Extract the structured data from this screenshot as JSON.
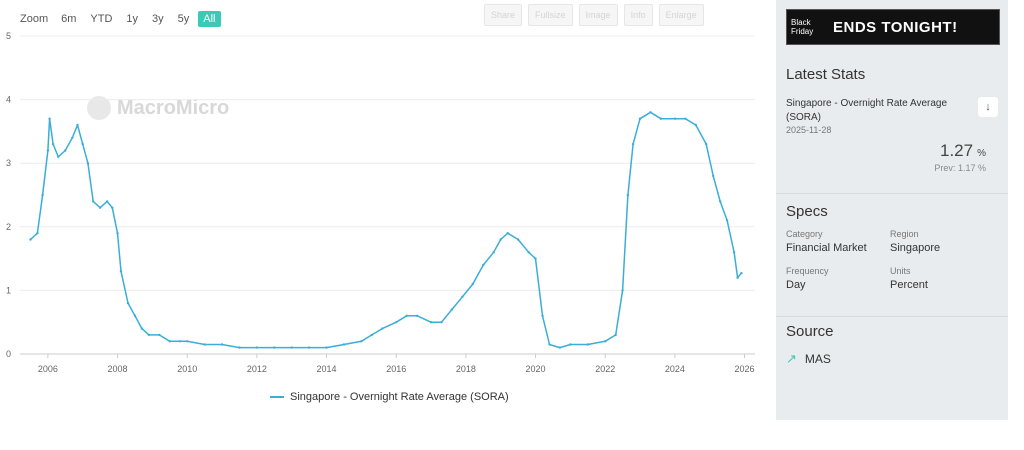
{
  "toolbar": {
    "zoom_label": "Zoom",
    "ranges": [
      "6m",
      "YTD",
      "1y",
      "3y",
      "5y",
      "All"
    ],
    "active_range": "All",
    "buttons": [
      "Share",
      "Fullsize",
      "Image",
      "Info",
      "Enlarge"
    ]
  },
  "watermark": "MacroMicro",
  "legend_label": "Singapore - Overnight Rate Average (SORA)",
  "colors": {
    "series": "#3aaed8",
    "accent": "#3ec9b6",
    "panel": "#e9ecef"
  },
  "chart_data": {
    "type": "line",
    "title": "",
    "xlabel": "",
    "ylabel": "",
    "xlim": [
      2005.2,
      2026.3
    ],
    "ylim": [
      0,
      5
    ],
    "yticks": [
      0,
      1,
      2,
      3,
      4,
      5
    ],
    "xticks": [
      2006,
      2008,
      2010,
      2012,
      2014,
      2016,
      2018,
      2020,
      2022,
      2024,
      2026
    ],
    "grid": true,
    "legend": "bottom-center",
    "series": [
      {
        "name": "Singapore - Overnight Rate Average (SORA)",
        "x": [
          2005.5,
          2005.7,
          2005.85,
          2006.0,
          2006.05,
          2006.15,
          2006.3,
          2006.5,
          2006.7,
          2006.85,
          2007.0,
          2007.15,
          2007.3,
          2007.5,
          2007.7,
          2007.85,
          2008.0,
          2008.1,
          2008.3,
          2008.5,
          2008.7,
          2008.9,
          2009.2,
          2009.5,
          2009.8,
          2010.0,
          2010.5,
          2011.0,
          2011.5,
          2012.0,
          2012.5,
          2013.0,
          2013.5,
          2014.0,
          2014.5,
          2015.0,
          2015.3,
          2015.6,
          2016.0,
          2016.3,
          2016.6,
          2017.0,
          2017.3,
          2017.6,
          2017.9,
          2018.2,
          2018.5,
          2018.8,
          2019.0,
          2019.2,
          2019.5,
          2019.8,
          2020.0,
          2020.2,
          2020.4,
          2020.7,
          2021.0,
          2021.5,
          2022.0,
          2022.3,
          2022.5,
          2022.65,
          2022.8,
          2023.0,
          2023.3,
          2023.6,
          2024.0,
          2024.3,
          2024.6,
          2024.9,
          2025.1,
          2025.3,
          2025.5,
          2025.7,
          2025.8,
          2025.91
        ],
        "y": [
          1.8,
          1.9,
          2.5,
          3.2,
          3.7,
          3.3,
          3.1,
          3.2,
          3.4,
          3.6,
          3.3,
          3.0,
          2.4,
          2.3,
          2.4,
          2.3,
          1.9,
          1.3,
          0.8,
          0.6,
          0.4,
          0.3,
          0.3,
          0.2,
          0.2,
          0.2,
          0.15,
          0.15,
          0.1,
          0.1,
          0.1,
          0.1,
          0.1,
          0.1,
          0.15,
          0.2,
          0.3,
          0.4,
          0.5,
          0.6,
          0.6,
          0.5,
          0.5,
          0.7,
          0.9,
          1.1,
          1.4,
          1.6,
          1.8,
          1.9,
          1.8,
          1.6,
          1.5,
          0.6,
          0.15,
          0.1,
          0.15,
          0.15,
          0.2,
          0.3,
          1.0,
          2.5,
          3.3,
          3.7,
          3.8,
          3.7,
          3.7,
          3.7,
          3.6,
          3.3,
          2.8,
          2.4,
          2.1,
          1.6,
          1.2,
          1.27
        ]
      }
    ]
  },
  "sidebar": {
    "ad": {
      "left": "Black Friday",
      "main": "ENDS TONIGHT!"
    },
    "latest": {
      "title": "Latest Stats",
      "name": "Singapore - Overnight Rate Average (SORA)",
      "date": "2025-11-28",
      "value": "1.27",
      "unit": "%",
      "prev_label": "Prev:",
      "prev_value": "1.17",
      "prev_unit": "%"
    },
    "specs": {
      "title": "Specs",
      "category_label": "Category",
      "category": "Financial Market",
      "region_label": "Region",
      "region": "Singapore",
      "frequency_label": "Frequency",
      "frequency": "Day",
      "units_label": "Units",
      "units": "Percent"
    },
    "source": {
      "title": "Source",
      "name": "MAS"
    }
  }
}
